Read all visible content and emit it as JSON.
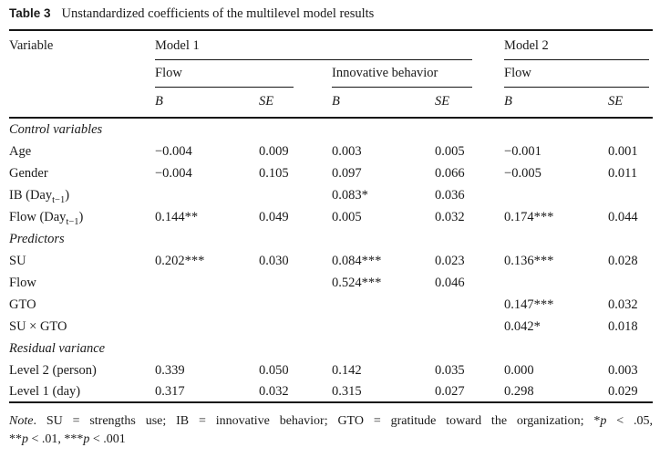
{
  "colors": {
    "ink": "#1a1a1a",
    "rule": "#161616",
    "background": "#ffffff"
  },
  "caption": {
    "label": "Table 3",
    "text": "Unstandardized coefficients of the multilevel model results"
  },
  "header": {
    "variable": "Variable",
    "groups": [
      {
        "label": "Model 1"
      },
      {
        "label": "Model 2"
      }
    ],
    "subgroups": [
      {
        "label": "Flow"
      },
      {
        "label": "Innovative behavior"
      },
      {
        "label": "Flow"
      }
    ],
    "stat_cols": [
      "B",
      "SE",
      "B",
      "SE",
      "B",
      "SE"
    ]
  },
  "chart_data": {
    "type": "table",
    "title": "Table 3 Unstandardized coefficients of the multilevel model results",
    "columns": [
      "Variable",
      "Model 1 Flow B",
      "Model 1 Flow SE",
      "Model 1 Innovative behavior B",
      "Model 1 Innovative behavior SE",
      "Model 2 Flow B",
      "Model 2 Flow SE"
    ]
  },
  "rows": [
    {
      "type": "section",
      "label": "Control variables"
    },
    {
      "type": "data",
      "label": {
        "pre": "Age"
      },
      "values": [
        "−0.004",
        "0.009",
        "0.003",
        "0.005",
        "−0.001",
        "0.001"
      ]
    },
    {
      "type": "data",
      "label": {
        "pre": "Gender"
      },
      "values": [
        "−0.004",
        "0.105",
        "0.097",
        "0.066",
        "−0.005",
        "0.011"
      ]
    },
    {
      "type": "data",
      "label": {
        "pre": "IB (Day",
        "sub": "t−1",
        "post": ")"
      },
      "values": [
        "",
        "",
        "0.083*",
        "0.036",
        "",
        ""
      ]
    },
    {
      "type": "data",
      "label": {
        "pre": "Flow (Day",
        "sub": "t−1",
        "post": ")"
      },
      "values": [
        "0.144**",
        "0.049",
        "0.005",
        "0.032",
        "0.174***",
        "0.044"
      ]
    },
    {
      "type": "section",
      "label": "Predictors"
    },
    {
      "type": "data",
      "label": {
        "pre": "SU"
      },
      "values": [
        "0.202***",
        "0.030",
        "0.084***",
        "0.023",
        "0.136***",
        "0.028"
      ]
    },
    {
      "type": "data",
      "label": {
        "pre": "Flow"
      },
      "values": [
        "",
        "",
        "0.524***",
        "0.046",
        "",
        ""
      ]
    },
    {
      "type": "data",
      "label": {
        "pre": "GTO"
      },
      "values": [
        "",
        "",
        "",
        "",
        "0.147***",
        "0.032"
      ]
    },
    {
      "type": "data",
      "label": {
        "pre": "SU × GTO"
      },
      "values": [
        "",
        "",
        "",
        "",
        "0.042*",
        "0.018"
      ]
    },
    {
      "type": "section",
      "label": "Residual variance"
    },
    {
      "type": "data",
      "label": {
        "pre": "Level 2 (person)"
      },
      "values": [
        "0.339",
        "0.050",
        "0.142",
        "0.035",
        "0.000",
        "0.003"
      ]
    },
    {
      "type": "data",
      "label": {
        "pre": "Level 1 (day)"
      },
      "values": [
        "0.317",
        "0.032",
        "0.315",
        "0.027",
        "0.298",
        "0.029"
      ]
    }
  ],
  "note": {
    "lines": [
      [
        {
          "t": "Note",
          "i": true
        },
        {
          "t": ". SU = strengths use; IB = innovative behavior; GTO = gratitude toward the organization; *",
          "i": false
        },
        {
          "t": "p",
          "i": true
        },
        {
          "t": " < .05,",
          "i": false
        }
      ],
      [
        {
          "t": "**",
          "i": false
        },
        {
          "t": "p",
          "i": true
        },
        {
          "t": " < .01, ***",
          "i": false
        },
        {
          "t": "p",
          "i": true
        },
        {
          "t": " < .001",
          "i": false
        }
      ]
    ]
  }
}
